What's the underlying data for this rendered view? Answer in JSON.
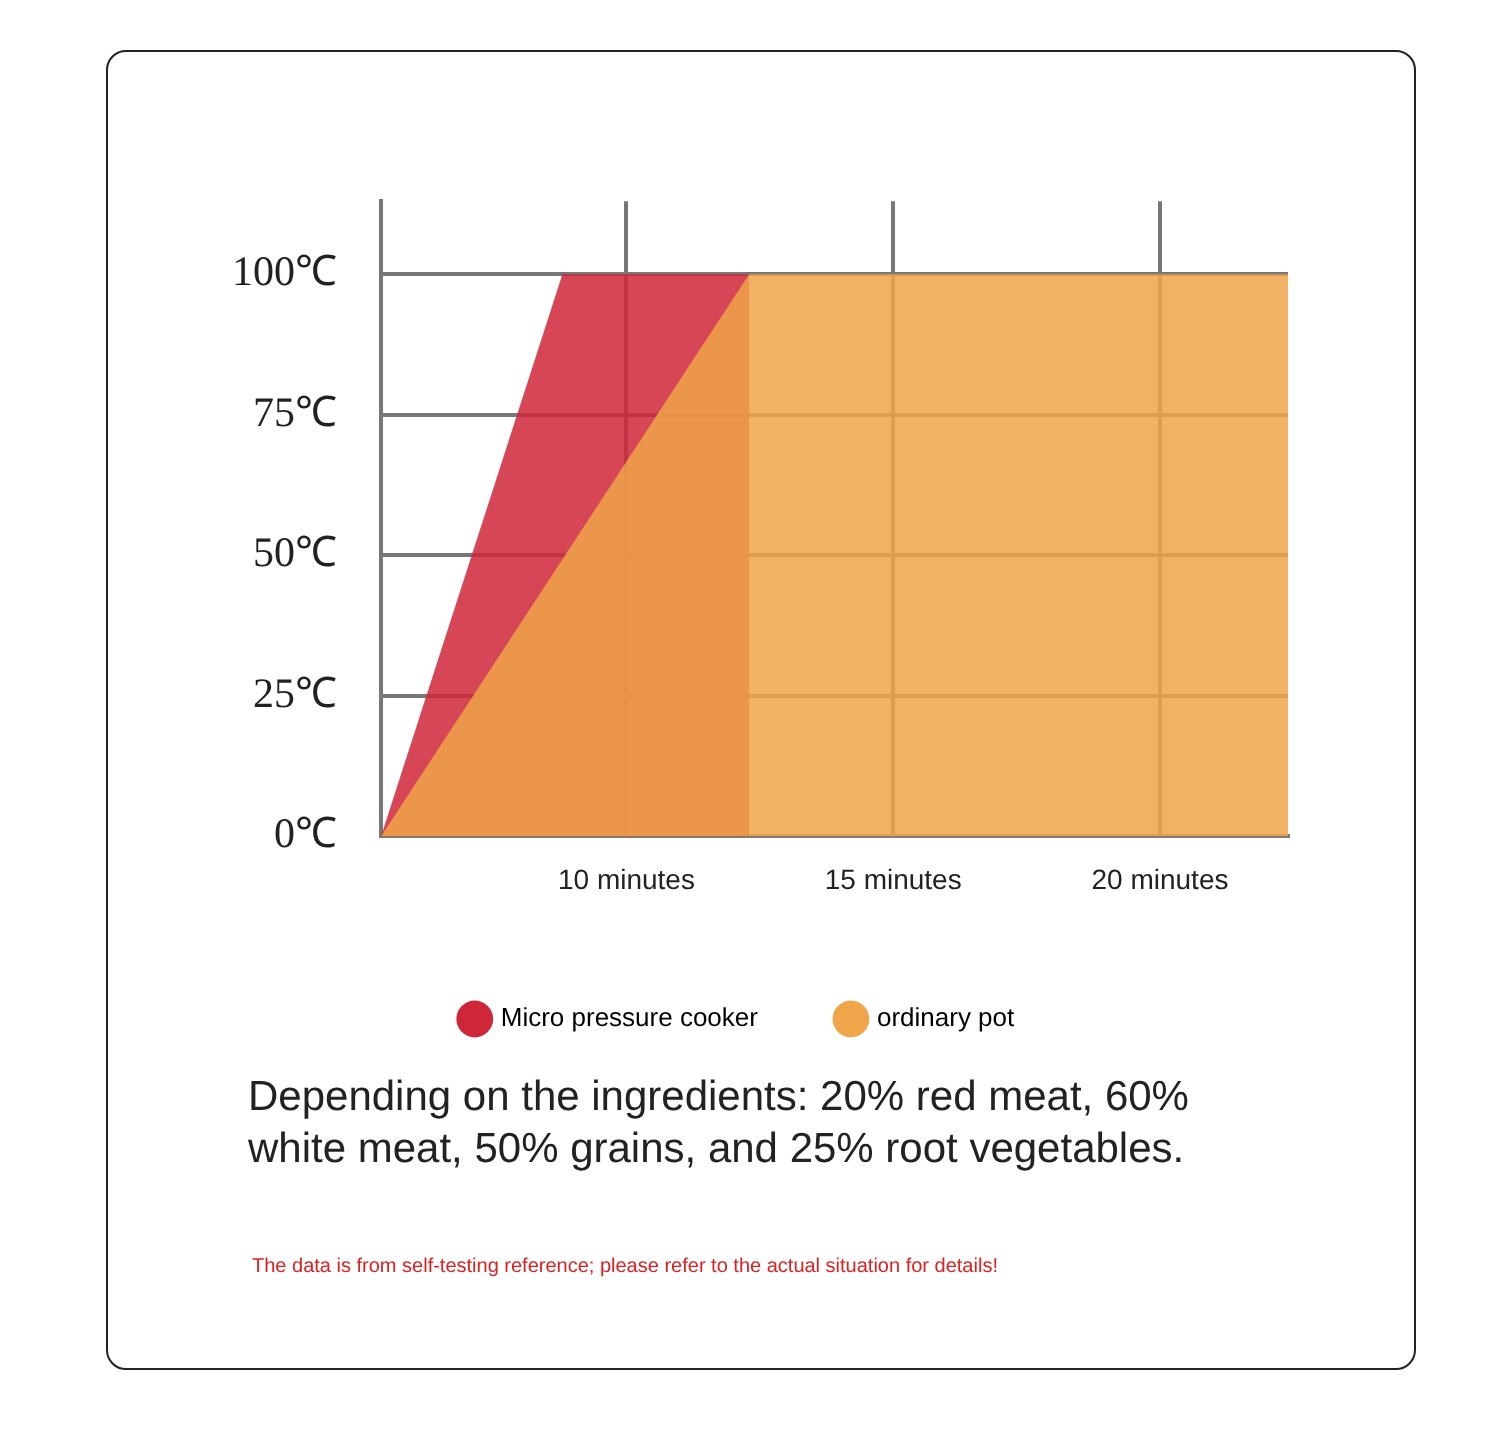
{
  "chart_data": {
    "type": "area",
    "series": [
      {
        "name": "Micro pressure cooker",
        "color": "#d0263a",
        "x": [
          5.4,
          8.8,
          12.3
        ],
        "values": [
          0,
          100,
          100
        ]
      },
      {
        "name": "ordinary pot",
        "color": "#f0a54a",
        "x": [
          5.4,
          12.3,
          22.4
        ],
        "values": [
          0,
          100,
          100
        ]
      }
    ],
    "xlim": [
      5.4,
      22.4
    ],
    "xticks": [
      {
        "value": 10,
        "label": "10 minutes"
      },
      {
        "value": 15,
        "label": "15 minutes"
      },
      {
        "value": 20,
        "label": "20 minutes"
      }
    ],
    "ylim": [
      0,
      113
    ],
    "yticks": [
      {
        "value": 0,
        "label": "0℃"
      },
      {
        "value": 25,
        "label": "25℃"
      },
      {
        "value": 50,
        "label": "50℃"
      },
      {
        "value": 75,
        "label": "75℃"
      },
      {
        "value": 100,
        "label": "100℃"
      }
    ],
    "grid": true,
    "legend": "bottom",
    "annotations": [
      "Depending on the ingredients: 20% red meat, 60% white meat, 50% grains, and 25% root vegetables.",
      "The data is from self-testing reference; please refer to the actual situation for details!"
    ]
  }
}
